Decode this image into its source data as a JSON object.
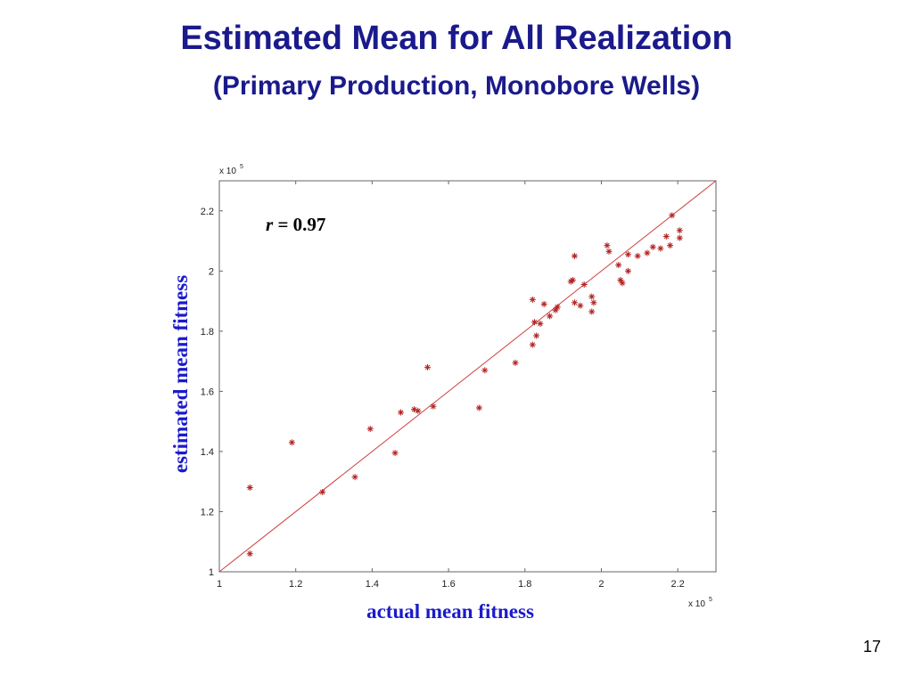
{
  "slide": {
    "title_line1": "Estimated Mean for All Realization",
    "title_line2": "(Primary Production, Monobore Wells)",
    "page_number": "17"
  },
  "chart_data": {
    "type": "scatter",
    "xlabel": "actual mean fitness",
    "ylabel": "estimated mean fitness",
    "x_multiplier": "x 10",
    "y_multiplier": "x 10",
    "multiplier_exponent": "5",
    "xlim": [
      1,
      2.3
    ],
    "ylim": [
      1,
      2.3
    ],
    "xticks": [
      "1",
      "1.2",
      "1.4",
      "1.6",
      "1.8",
      "2",
      "2.2"
    ],
    "yticks": [
      "1",
      "1.2",
      "1.4",
      "1.6",
      "1.8",
      "2",
      "2.2"
    ],
    "annotation": {
      "var": "r",
      "text": " = 0.97"
    },
    "fit_line": {
      "from": [
        1,
        1
      ],
      "to": [
        2.3,
        2.3
      ],
      "color": "#d04040"
    },
    "marker_color": "#b22222",
    "points": [
      [
        1.08,
        1.28
      ],
      [
        1.08,
        1.06
      ],
      [
        1.19,
        1.43
      ],
      [
        1.27,
        1.265
      ],
      [
        1.355,
        1.315
      ],
      [
        1.395,
        1.475
      ],
      [
        1.46,
        1.395
      ],
      [
        1.475,
        1.53
      ],
      [
        1.51,
        1.54
      ],
      [
        1.52,
        1.535
      ],
      [
        1.545,
        1.68
      ],
      [
        1.56,
        1.55
      ],
      [
        1.68,
        1.545
      ],
      [
        1.695,
        1.67
      ],
      [
        1.775,
        1.695
      ],
      [
        1.82,
        1.755
      ],
      [
        1.82,
        1.905
      ],
      [
        1.825,
        1.83
      ],
      [
        1.83,
        1.785
      ],
      [
        1.84,
        1.825
      ],
      [
        1.85,
        1.89
      ],
      [
        1.865,
        1.85
      ],
      [
        1.88,
        1.87
      ],
      [
        1.885,
        1.88
      ],
      [
        1.92,
        1.965
      ],
      [
        1.925,
        1.97
      ],
      [
        1.93,
        2.05
      ],
      [
        1.93,
        1.895
      ],
      [
        1.945,
        1.885
      ],
      [
        1.955,
        1.955
      ],
      [
        1.975,
        1.865
      ],
      [
        1.975,
        1.915
      ],
      [
        1.98,
        1.895
      ],
      [
        2.015,
        2.085
      ],
      [
        2.02,
        2.065
      ],
      [
        2.045,
        2.02
      ],
      [
        2.05,
        1.97
      ],
      [
        2.055,
        1.96
      ],
      [
        2.07,
        2.055
      ],
      [
        2.07,
        2.0
      ],
      [
        2.095,
        2.05
      ],
      [
        2.12,
        2.06
      ],
      [
        2.135,
        2.08
      ],
      [
        2.155,
        2.075
      ],
      [
        2.17,
        2.115
      ],
      [
        2.18,
        2.085
      ],
      [
        2.185,
        2.185
      ],
      [
        2.205,
        2.135
      ],
      [
        2.205,
        2.11
      ]
    ]
  }
}
